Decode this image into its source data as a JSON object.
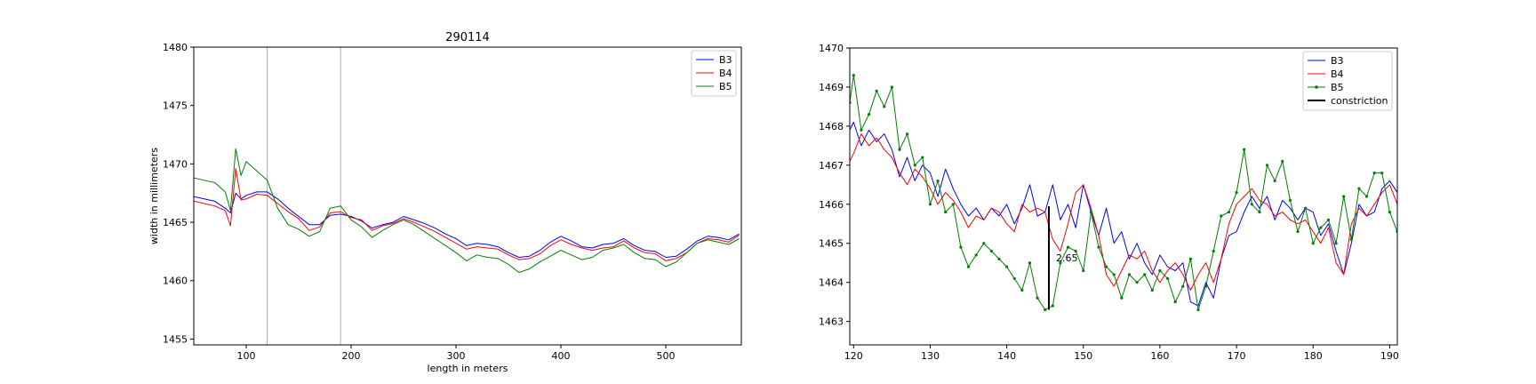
{
  "chart_data": [
    {
      "type": "line",
      "title": "290114",
      "xlabel": "length in meters",
      "ylabel": "width in millimeters",
      "xlim": [
        50,
        572
      ],
      "ylim": [
        1454.5,
        1480
      ],
      "xticks": [
        100,
        200,
        300,
        400,
        500
      ],
      "yticks": [
        1455,
        1460,
        1465,
        1470,
        1475,
        1480
      ],
      "vlines": [
        120,
        190
      ],
      "legend": "top-right",
      "grid": false,
      "series": [
        {
          "name": "B3",
          "color": "#0000ff",
          "x": [
            50,
            60,
            70,
            80,
            85,
            90,
            95,
            100,
            110,
            120,
            130,
            140,
            150,
            160,
            170,
            180,
            190,
            200,
            210,
            220,
            230,
            240,
            250,
            260,
            270,
            280,
            290,
            300,
            310,
            320,
            330,
            340,
            350,
            360,
            370,
            380,
            390,
            400,
            410,
            420,
            430,
            440,
            450,
            460,
            470,
            480,
            490,
            500,
            510,
            520,
            530,
            540,
            550,
            560,
            570
          ],
          "y": [
            1467.2,
            1467.0,
            1466.8,
            1466.2,
            1465.8,
            1467.5,
            1467.0,
            1467.3,
            1467.6,
            1467.6,
            1467.0,
            1466.2,
            1465.5,
            1464.8,
            1464.8,
            1465.6,
            1465.7,
            1465.5,
            1465.1,
            1464.5,
            1464.8,
            1465.0,
            1465.5,
            1465.2,
            1464.9,
            1464.5,
            1464.0,
            1463.6,
            1463.0,
            1463.2,
            1463.1,
            1462.9,
            1462.4,
            1462.0,
            1462.1,
            1462.6,
            1463.3,
            1463.8,
            1463.4,
            1462.9,
            1462.8,
            1463.1,
            1463.2,
            1463.6,
            1463.0,
            1462.6,
            1462.5,
            1462.0,
            1462.1,
            1462.7,
            1463.4,
            1463.8,
            1463.7,
            1463.5,
            1464.0
          ]
        },
        {
          "name": "B4",
          "color": "#ff0000",
          "x": [
            50,
            60,
            70,
            80,
            85,
            90,
            95,
            100,
            110,
            120,
            130,
            140,
            150,
            160,
            170,
            180,
            190,
            200,
            210,
            220,
            230,
            240,
            250,
            260,
            270,
            280,
            290,
            300,
            310,
            320,
            330,
            340,
            350,
            360,
            370,
            380,
            390,
            400,
            410,
            420,
            430,
            440,
            450,
            460,
            470,
            480,
            490,
            500,
            510,
            520,
            530,
            540,
            550,
            560,
            570
          ],
          "y": [
            1466.8,
            1466.6,
            1466.4,
            1466.0,
            1464.7,
            1469.6,
            1466.9,
            1467.0,
            1467.4,
            1467.3,
            1466.6,
            1465.9,
            1465.3,
            1464.3,
            1464.6,
            1465.8,
            1465.9,
            1465.4,
            1465.2,
            1464.3,
            1464.7,
            1464.9,
            1465.3,
            1465.0,
            1464.6,
            1464.2,
            1463.7,
            1463.2,
            1462.7,
            1462.9,
            1462.8,
            1462.7,
            1462.2,
            1461.8,
            1461.9,
            1462.3,
            1463.0,
            1463.5,
            1463.1,
            1462.8,
            1462.6,
            1462.8,
            1462.9,
            1463.4,
            1462.8,
            1462.4,
            1462.3,
            1461.7,
            1461.9,
            1462.4,
            1463.2,
            1463.6,
            1463.5,
            1463.3,
            1463.9
          ]
        },
        {
          "name": "B5",
          "color": "#008000",
          "x": [
            50,
            60,
            70,
            80,
            85,
            90,
            95,
            100,
            110,
            120,
            130,
            140,
            150,
            160,
            170,
            180,
            190,
            200,
            210,
            220,
            230,
            240,
            250,
            260,
            270,
            280,
            290,
            300,
            310,
            320,
            330,
            340,
            350,
            360,
            370,
            380,
            390,
            400,
            410,
            420,
            430,
            440,
            450,
            460,
            470,
            480,
            490,
            500,
            510,
            520,
            530,
            540,
            550,
            560,
            570
          ],
          "y": [
            1468.8,
            1468.6,
            1468.4,
            1467.6,
            1466.0,
            1471.3,
            1469.0,
            1470.2,
            1469.4,
            1468.6,
            1466.2,
            1464.8,
            1464.4,
            1463.8,
            1464.2,
            1466.2,
            1466.4,
            1465.2,
            1464.6,
            1463.7,
            1464.3,
            1464.8,
            1465.2,
            1464.8,
            1464.2,
            1463.6,
            1463.0,
            1462.4,
            1461.7,
            1462.2,
            1462.0,
            1461.9,
            1461.4,
            1460.7,
            1461.0,
            1461.6,
            1462.1,
            1462.6,
            1462.2,
            1461.8,
            1462.0,
            1462.6,
            1462.8,
            1463.1,
            1462.4,
            1461.9,
            1461.8,
            1461.2,
            1461.6,
            1462.4,
            1463.2,
            1463.5,
            1463.3,
            1463.1,
            1463.6
          ]
        }
      ]
    },
    {
      "type": "line",
      "title": "",
      "xlabel": "",
      "ylabel": "",
      "xlim": [
        119.5,
        191
      ],
      "ylim": [
        1462.4,
        1470.0
      ],
      "xticks": [
        120,
        130,
        140,
        150,
        160,
        170,
        180,
        190
      ],
      "yticks": [
        1463,
        1464,
        1465,
        1466,
        1467,
        1468,
        1469,
        1470
      ],
      "legend": "top-right",
      "grid": false,
      "annotation": {
        "x": 145.5,
        "y_low": 1463.3,
        "y_high": 1465.95,
        "label": "2.65"
      },
      "series": [
        {
          "name": "B3",
          "color": "#0000ff",
          "markers": false,
          "x": [
            119.5,
            120,
            121,
            122,
            123,
            124,
            125,
            126,
            127,
            128,
            129,
            130,
            131,
            132,
            133,
            134,
            135,
            136,
            137,
            138,
            139,
            140,
            141,
            142,
            143,
            144,
            145,
            146,
            147,
            148,
            149,
            150,
            151,
            152,
            153,
            154,
            155,
            156,
            157,
            158,
            159,
            160,
            161,
            162,
            163,
            164,
            165,
            166,
            167,
            168,
            169,
            170,
            171,
            172,
            173,
            174,
            175,
            176,
            177,
            178,
            179,
            180,
            181,
            182,
            183,
            184,
            185,
            186,
            187,
            188,
            189,
            190,
            191
          ],
          "y": [
            1467.9,
            1468.1,
            1467.5,
            1467.9,
            1467.6,
            1467.8,
            1467.4,
            1466.7,
            1467.2,
            1466.6,
            1467.0,
            1466.8,
            1466.2,
            1466.9,
            1466.4,
            1466.0,
            1465.7,
            1465.9,
            1465.6,
            1465.9,
            1465.7,
            1466.0,
            1465.5,
            1465.9,
            1466.5,
            1465.7,
            1465.8,
            1466.5,
            1465.6,
            1466.0,
            1465.4,
            1466.5,
            1465.8,
            1465.2,
            1465.9,
            1465.0,
            1465.3,
            1464.6,
            1465.0,
            1464.5,
            1464.2,
            1464.7,
            1464.4,
            1464.3,
            1464.5,
            1463.5,
            1463.4,
            1464.0,
            1463.6,
            1464.6,
            1465.2,
            1465.3,
            1465.8,
            1466.2,
            1465.9,
            1466.2,
            1465.6,
            1466.1,
            1465.9,
            1465.6,
            1465.9,
            1465.8,
            1465.2,
            1465.5,
            1464.8,
            1464.2,
            1465.0,
            1466.0,
            1465.7,
            1465.8,
            1466.4,
            1466.6,
            1466.3
          ]
        },
        {
          "name": "B4",
          "color": "#ff0000",
          "markers": false,
          "x": [
            119.5,
            120,
            121,
            122,
            123,
            124,
            125,
            126,
            127,
            128,
            129,
            130,
            131,
            132,
            133,
            134,
            135,
            136,
            137,
            138,
            139,
            140,
            141,
            142,
            143,
            144,
            145,
            146,
            147,
            148,
            149,
            150,
            151,
            152,
            153,
            154,
            155,
            156,
            157,
            158,
            159,
            160,
            161,
            162,
            163,
            164,
            165,
            166,
            167,
            168,
            169,
            170,
            171,
            172,
            173,
            174,
            175,
            176,
            177,
            178,
            179,
            180,
            181,
            182,
            183,
            184,
            185,
            186,
            187,
            188,
            189,
            190,
            191
          ],
          "y": [
            1467.1,
            1467.3,
            1467.8,
            1467.5,
            1467.7,
            1467.4,
            1467.2,
            1466.8,
            1466.5,
            1466.9,
            1466.7,
            1466.4,
            1466.0,
            1466.3,
            1466.1,
            1465.8,
            1465.4,
            1465.7,
            1465.6,
            1465.9,
            1465.8,
            1465.5,
            1465.3,
            1466.0,
            1465.8,
            1465.9,
            1465.8,
            1465.1,
            1464.8,
            1465.5,
            1466.3,
            1466.5,
            1465.9,
            1465.2,
            1464.2,
            1463.9,
            1464.3,
            1464.7,
            1464.6,
            1464.8,
            1464.3,
            1464.0,
            1464.3,
            1464.5,
            1464.2,
            1463.8,
            1464.2,
            1464.5,
            1464.0,
            1464.6,
            1465.5,
            1466.0,
            1466.2,
            1466.4,
            1466.1,
            1466.0,
            1465.7,
            1465.8,
            1465.6,
            1465.5,
            1465.6,
            1465.3,
            1465.0,
            1465.4,
            1464.5,
            1464.2,
            1465.5,
            1465.9,
            1465.7,
            1466.0,
            1466.3,
            1466.5,
            1466.0
          ]
        },
        {
          "name": "B5",
          "color": "#008000",
          "markers": true,
          "x": [
            119.5,
            120,
            121,
            122,
            123,
            124,
            125,
            126,
            127,
            128,
            129,
            130,
            131,
            132,
            133,
            134,
            135,
            136,
            137,
            138,
            139,
            140,
            141,
            142,
            143,
            144,
            145,
            146,
            147,
            148,
            149,
            150,
            151,
            152,
            153,
            154,
            155,
            156,
            157,
            158,
            159,
            160,
            161,
            162,
            163,
            164,
            165,
            166,
            167,
            168,
            169,
            170,
            171,
            172,
            173,
            174,
            175,
            176,
            177,
            178,
            179,
            180,
            181,
            182,
            183,
            184,
            185,
            186,
            187,
            188,
            189,
            190,
            191
          ],
          "y": [
            1468.6,
            1469.3,
            1467.9,
            1468.3,
            1468.9,
            1468.5,
            1469.0,
            1467.4,
            1467.8,
            1467.0,
            1467.2,
            1466.0,
            1466.6,
            1465.8,
            1466.0,
            1464.9,
            1464.4,
            1464.7,
            1465.0,
            1464.8,
            1464.6,
            1464.4,
            1464.1,
            1463.8,
            1464.5,
            1463.6,
            1463.3,
            1463.4,
            1464.5,
            1464.9,
            1464.8,
            1464.3,
            1465.8,
            1464.9,
            1464.4,
            1464.2,
            1463.6,
            1464.2,
            1464.0,
            1464.2,
            1463.8,
            1464.3,
            1464.1,
            1463.5,
            1463.9,
            1464.6,
            1463.3,
            1463.9,
            1464.8,
            1465.7,
            1465.8,
            1466.3,
            1467.4,
            1466.0,
            1465.8,
            1467.0,
            1466.6,
            1467.1,
            1466.1,
            1465.3,
            1465.9,
            1465.0,
            1465.4,
            1465.6,
            1465.0,
            1466.2,
            1465.1,
            1466.4,
            1466.2,
            1466.8,
            1466.8,
            1465.8,
            1465.3
          ]
        },
        {
          "name": "constriction",
          "color": "#000000",
          "markers": false,
          "x": [],
          "y": []
        }
      ]
    }
  ]
}
